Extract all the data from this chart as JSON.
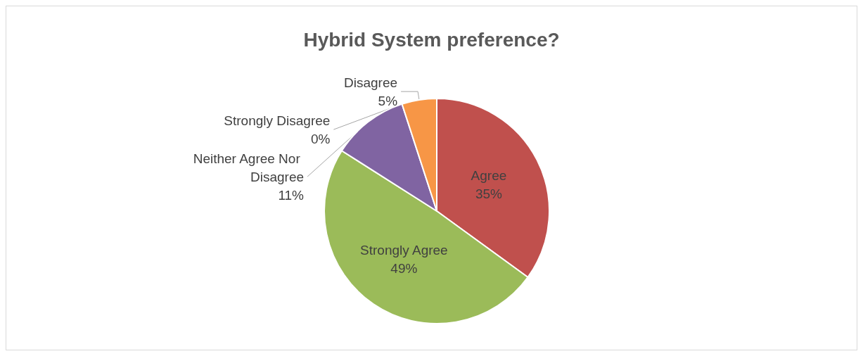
{
  "chart_data": {
    "type": "pie",
    "title": "Hybrid System preference?",
    "categories": [
      "Agree",
      "Strongly Agree",
      "Neither Agree Nor Disagree",
      "Strongly Disagree",
      "Disagree"
    ],
    "values": [
      35,
      49,
      11,
      0,
      5
    ],
    "colors": [
      "#c0504d",
      "#9bbb59",
      "#8064a2",
      "#4f81bd",
      "#f79646"
    ],
    "value_labels": [
      "35%",
      "49%",
      "11%",
      "0%",
      "5%"
    ],
    "legend": false
  }
}
